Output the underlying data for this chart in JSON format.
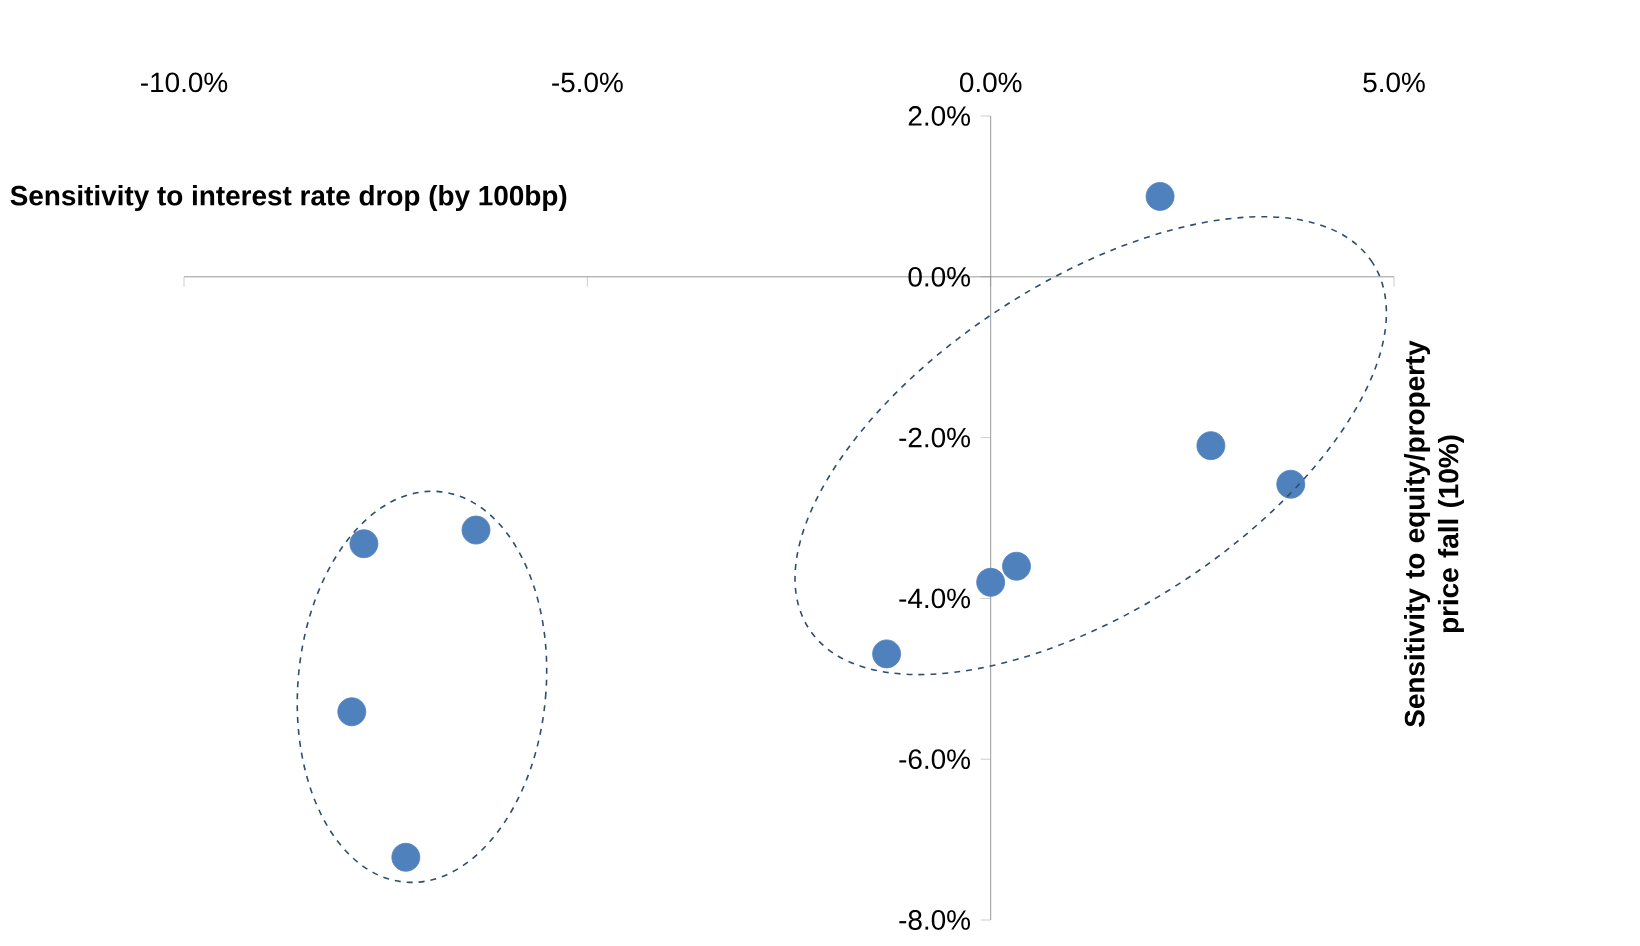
{
  "chart_data": {
    "type": "scatter",
    "xlabel": "Sensitivity to interest rate drop (by 100bp)",
    "ylabel": "Sensitivity to equity/property price fall (10%)",
    "x": [
      2.1,
      2.73,
      3.72,
      0.32,
      0.0,
      -1.29,
      -6.38,
      -7.77,
      -7.92,
      -7.25
    ],
    "values": [
      1.0,
      -2.1,
      -2.58,
      -3.6,
      -3.8,
      -4.69,
      -3.15,
      -3.32,
      -5.41,
      -7.22
    ],
    "color": "#4f81bd",
    "marker": "circle",
    "xlim": [
      -10,
      5
    ],
    "ylim": [
      -8,
      2
    ],
    "xticks": [
      {
        "value": -10,
        "label": "-10.0%"
      },
      {
        "value": -5,
        "label": "-5.0%"
      },
      {
        "value": 0,
        "label": "0.0%"
      },
      {
        "value": 5,
        "label": "5.0%"
      }
    ],
    "yticks": [
      {
        "value": -8,
        "label": "-8.0%"
      },
      {
        "value": -6,
        "label": "-6.0%"
      },
      {
        "value": -4,
        "label": "-4.0%"
      },
      {
        "value": -2,
        "label": "-2.0%"
      },
      {
        "value": 0,
        "label": "0.0%"
      },
      {
        "value": 2,
        "label": "2.0%"
      }
    ]
  }
}
